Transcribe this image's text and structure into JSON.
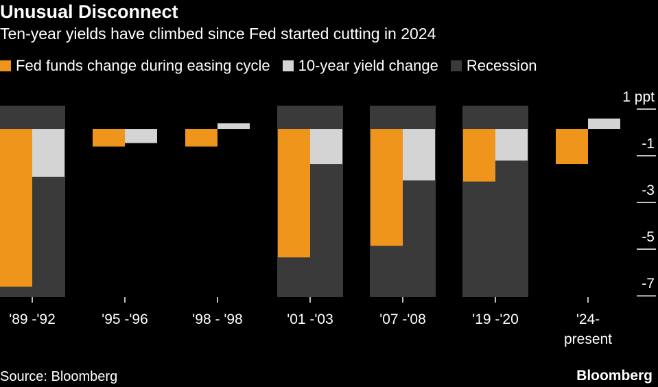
{
  "header": {
    "title": "Unusual Disconnect",
    "subtitle": "Ten-year yields have climbed since Fed started cutting in 2024"
  },
  "legend": [
    {
      "label": "Fed funds change during easing cycle",
      "color": "#f0951c"
    },
    {
      "label": "10-year yield change",
      "color": "#d4d4d4"
    },
    {
      "label": "Recession",
      "color": "#3a3a3a"
    }
  ],
  "footer": {
    "source": "Source: Bloomberg",
    "brand": "Bloomberg"
  },
  "chart_data": {
    "type": "bar",
    "title": "Unusual Disconnect",
    "subtitle": "Ten-year yields have climbed since Fed started cutting in 2024",
    "categories": [
      "'89 -'92",
      "'95 -'96",
      "'98 - '98",
      "'01 -'03",
      "'07 -'08",
      "'19 -'20",
      "'24-\npresent"
    ],
    "series": [
      {
        "name": "Fed funds change during easing cycle",
        "color": "#f0951c",
        "values": [
          -6.75,
          -0.75,
          -0.75,
          -5.5,
          -5.0,
          -2.25,
          -1.5
        ]
      },
      {
        "name": "10-year yield change",
        "color": "#d4d4d4",
        "values": [
          -2.05,
          -0.6,
          0.25,
          -1.5,
          -2.2,
          -1.35,
          0.45
        ]
      }
    ],
    "recession": [
      true,
      false,
      false,
      true,
      true,
      true,
      false
    ],
    "recession_color": "#3a3a3a",
    "ylim": [
      -7.2,
      1
    ],
    "yticks": [
      1,
      -1,
      -3,
      -5,
      -7
    ],
    "ytick_labels": [
      "1 ppt",
      "-1",
      "-3",
      "-5",
      "-7"
    ],
    "grid": false,
    "legend_position": "top"
  }
}
